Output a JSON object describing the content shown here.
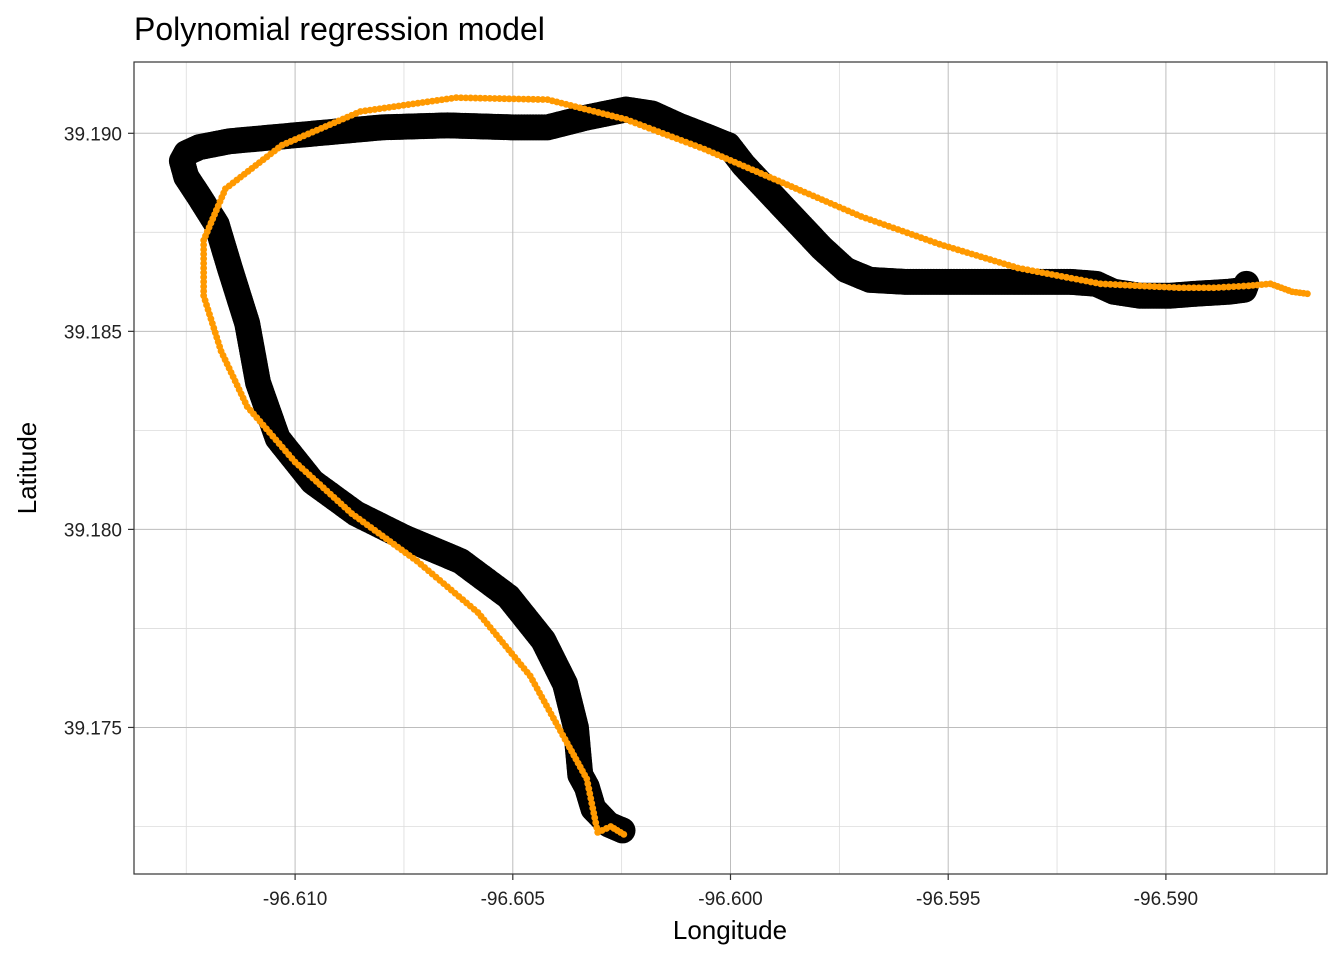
{
  "chart_data": {
    "type": "scatter",
    "title": "Polynomial regression model",
    "xlabel": "Longitude",
    "ylabel": "Latitude",
    "xlim": [
      -96.6137,
      -96.5863
    ],
    "ylim": [
      39.1713,
      39.1918
    ],
    "x_ticks": [
      {
        "value": -96.61,
        "label": "-96.610"
      },
      {
        "value": -96.605,
        "label": "-96.605"
      },
      {
        "value": -96.6,
        "label": "-96.600"
      },
      {
        "value": -96.595,
        "label": "-96.595"
      },
      {
        "value": -96.59,
        "label": "-96.590"
      }
    ],
    "y_ticks": [
      {
        "value": 39.175,
        "label": "39.175"
      },
      {
        "value": 39.18,
        "label": "39.180"
      },
      {
        "value": 39.185,
        "label": "39.185"
      },
      {
        "value": 39.19,
        "label": "39.190"
      }
    ],
    "grid": true,
    "legend": "none",
    "series": [
      {
        "color": "#000000",
        "marker_size": "large",
        "points": [
          [
            -96.60248,
            39.1724
          ],
          [
            -96.6028,
            39.17255
          ],
          [
            -96.60315,
            39.17295
          ],
          [
            -96.6033,
            39.1735
          ],
          [
            -96.60345,
            39.1738
          ],
          [
            -96.60355,
            39.175
          ],
          [
            -96.6038,
            39.1761
          ],
          [
            -96.6043,
            39.1772
          ],
          [
            -96.6051,
            39.1783
          ],
          [
            -96.6062,
            39.1792
          ],
          [
            -96.6075,
            39.1798
          ],
          [
            -96.6086,
            39.1804
          ],
          [
            -96.6096,
            39.1812
          ],
          [
            -96.6104,
            39.1823
          ],
          [
            -96.61085,
            39.1837
          ],
          [
            -96.6111,
            39.1852
          ],
          [
            -96.6115,
            39.1866
          ],
          [
            -96.6118,
            39.1877
          ],
          [
            -96.6122,
            39.1884
          ],
          [
            -96.6125,
            39.1889
          ],
          [
            -96.6126,
            39.1893
          ],
          [
            -96.6125,
            39.1895
          ],
          [
            -96.6122,
            39.18965
          ],
          [
            -96.6115,
            39.1898
          ],
          [
            -96.6105,
            39.1899
          ],
          [
            -96.6095,
            39.19
          ],
          [
            -96.608,
            39.19015
          ],
          [
            -96.6065,
            39.1902
          ],
          [
            -96.605,
            39.19015
          ],
          [
            -96.6042,
            39.19015
          ],
          [
            -96.6033,
            39.1904
          ],
          [
            -96.6024,
            39.1906
          ],
          [
            -96.6018,
            39.1905
          ],
          [
            -96.6012,
            39.1902
          ],
          [
            -96.6005,
            39.1899
          ],
          [
            -96.60005,
            39.1897
          ],
          [
            -96.5997,
            39.1892
          ],
          [
            -96.5991,
            39.1885
          ],
          [
            -96.5985,
            39.1878
          ],
          [
            -96.5979,
            39.1871
          ],
          [
            -96.59735,
            39.18655
          ],
          [
            -96.5968,
            39.1863
          ],
          [
            -96.596,
            39.18625
          ],
          [
            -96.5948,
            39.18625
          ],
          [
            -96.5935,
            39.18625
          ],
          [
            -96.5922,
            39.18625
          ],
          [
            -96.5916,
            39.1862
          ],
          [
            -96.5912,
            39.186
          ],
          [
            -96.5906,
            39.1859
          ],
          [
            -96.5899,
            39.1859
          ],
          [
            -96.5893,
            39.18595
          ],
          [
            -96.58855,
            39.186
          ],
          [
            -96.5882,
            39.18605
          ],
          [
            -96.58815,
            39.1862
          ]
        ]
      },
      {
        "color": "#ff9900",
        "marker_size": "small",
        "points": [
          [
            -96.60245,
            39.1723
          ],
          [
            -96.60275,
            39.1725
          ],
          [
            -96.60305,
            39.17235
          ],
          [
            -96.6033,
            39.1737
          ],
          [
            -96.6038,
            39.1747
          ],
          [
            -96.6046,
            39.1763
          ],
          [
            -96.6058,
            39.1779
          ],
          [
            -96.6072,
            39.1792
          ],
          [
            -96.6087,
            39.1804
          ],
          [
            -96.61,
            39.1817
          ],
          [
            -96.6111,
            39.1831
          ],
          [
            -96.6117,
            39.1845
          ],
          [
            -96.6121,
            39.1859
          ],
          [
            -96.6121,
            39.1873
          ],
          [
            -96.6116,
            39.1886
          ],
          [
            -96.6103,
            39.1897
          ],
          [
            -96.6085,
            39.19055
          ],
          [
            -96.6063,
            39.1909
          ],
          [
            -96.6042,
            39.19085
          ],
          [
            -96.6024,
            39.19035
          ],
          [
            -96.6006,
            39.1896
          ],
          [
            -96.5988,
            39.18875
          ],
          [
            -96.597,
            39.1879
          ],
          [
            -96.5952,
            39.1872
          ],
          [
            -96.5934,
            39.1866
          ],
          [
            -96.5915,
            39.1862
          ],
          [
            -96.5897,
            39.1861
          ],
          [
            -96.5889,
            39.1861
          ],
          [
            -96.5881,
            39.18615
          ],
          [
            -96.5876,
            39.1862
          ],
          [
            -96.58735,
            39.1861
          ],
          [
            -96.5871,
            39.186
          ],
          [
            -96.58675,
            39.18595
          ]
        ]
      }
    ]
  }
}
